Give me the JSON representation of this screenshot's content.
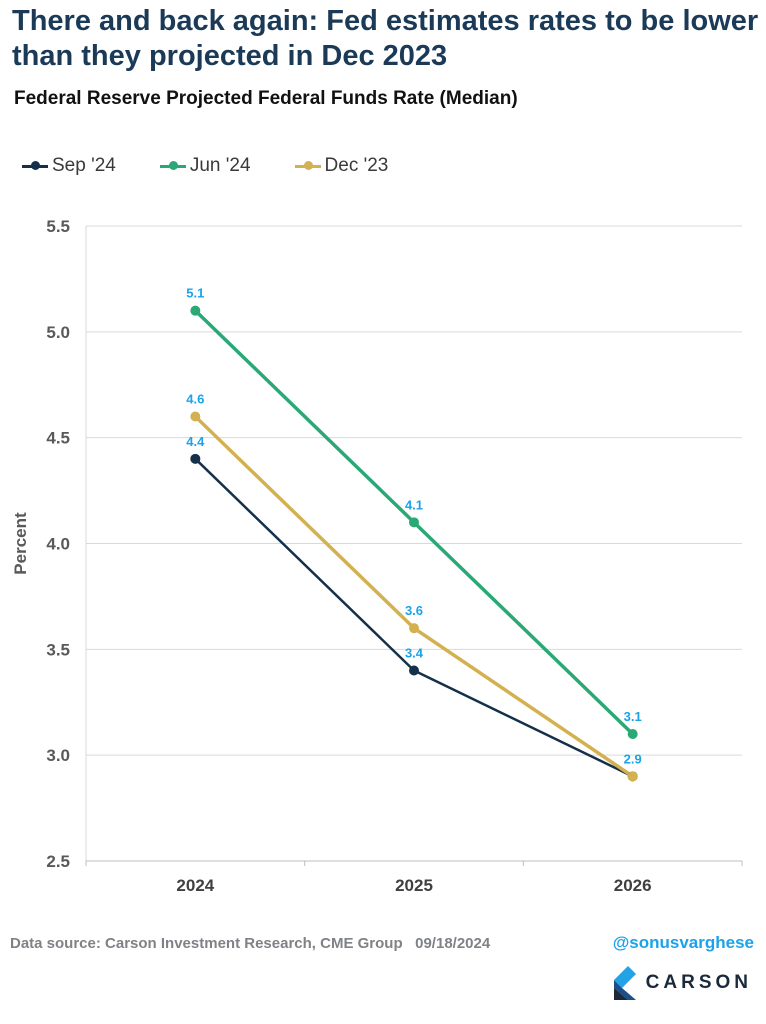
{
  "headline": "There and back again: Fed estimates rates to be lower than they projected in Dec 2023",
  "footer": {
    "source": "Data source: Carson Investment Research, CME Group",
    "date": "09/18/2024",
    "handle": "@sonusvarghese",
    "brand": "CARSON"
  },
  "colors": {
    "sep24": "#15304a",
    "jun24": "#2aa876",
    "dec23": "#d4b150",
    "data_label": "#1aa3ea",
    "grid": "#d9d9d9"
  },
  "chart_data": {
    "type": "line",
    "title": "Federal Reserve Projected Federal Funds Rate (Median)",
    "xlabel": "",
    "ylabel": "Percent",
    "categories": [
      "2024",
      "2025",
      "2026"
    ],
    "ylim": [
      2.5,
      5.5
    ],
    "yticks": [
      "2.5",
      "3.0",
      "3.5",
      "4.0",
      "4.5",
      "5.0",
      "5.5"
    ],
    "grid": "horizontal",
    "legend_position": "top-left",
    "series": [
      {
        "name": "Sep '24",
        "values": [
          4.4,
          3.4,
          2.9
        ],
        "labels": [
          "4.4",
          "3.4",
          ""
        ],
        "color": "#15304a"
      },
      {
        "name": "Jun '24",
        "values": [
          5.1,
          4.1,
          3.1
        ],
        "labels": [
          "5.1",
          "4.1",
          "3.1"
        ],
        "color": "#2aa876"
      },
      {
        "name": "Dec '23",
        "values": [
          4.6,
          3.6,
          2.9
        ],
        "labels": [
          "4.6",
          "3.6",
          "2.9"
        ],
        "color": "#d4b150"
      }
    ]
  }
}
